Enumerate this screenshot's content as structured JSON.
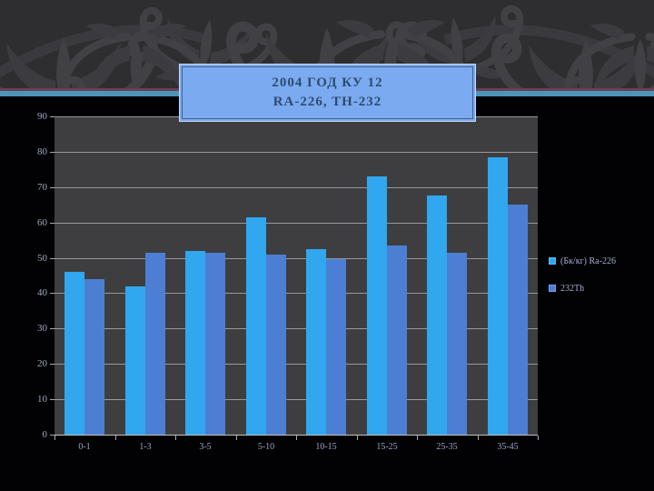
{
  "slide_title": {
    "line1": "2004 ГОД КУ 12",
    "line2": "RA-226, TH-232"
  },
  "chart_data": {
    "type": "bar",
    "title": "2004 ГОД КУ 12 RA-226, TH-232",
    "categories": [
      "0-1",
      "1-3",
      "3-5",
      "5-10",
      "10-15",
      "15-25",
      "25-35",
      "35-45"
    ],
    "series": [
      {
        "name": "(Бк/кг) Ra-226",
        "color": "#31a7ef",
        "values": [
          46,
          42,
          52,
          61.5,
          52.5,
          73,
          67.5,
          78.5
        ]
      },
      {
        "name": "232Th",
        "color": "#4c7fd3",
        "values": [
          44,
          51.5,
          51.5,
          51,
          49.5,
          53.5,
          51.5,
          65
        ]
      }
    ],
    "ylim": [
      0,
      90
    ],
    "yticks": [
      0,
      10,
      20,
      30,
      40,
      50,
      60,
      70,
      80,
      90
    ],
    "grid": true,
    "legend_position": "right",
    "xlabel": "",
    "ylabel": ""
  },
  "colors": {
    "series1": "#31a7ef",
    "series2": "#4c7fd3",
    "plot_background": "#3e3e40",
    "slide_background": "#020204",
    "banner_background": "#2e2e30",
    "banner_ornament": "#404044",
    "title_box_fill": "#7caaf0",
    "title_text": "#2b4c6e",
    "separator_maroon": "#6e3c55",
    "separator_teal": "#4b96b9",
    "gridline": "#a9a9a9",
    "axis_label": "#9fa8bf",
    "legend_text": "#a5aed0"
  }
}
